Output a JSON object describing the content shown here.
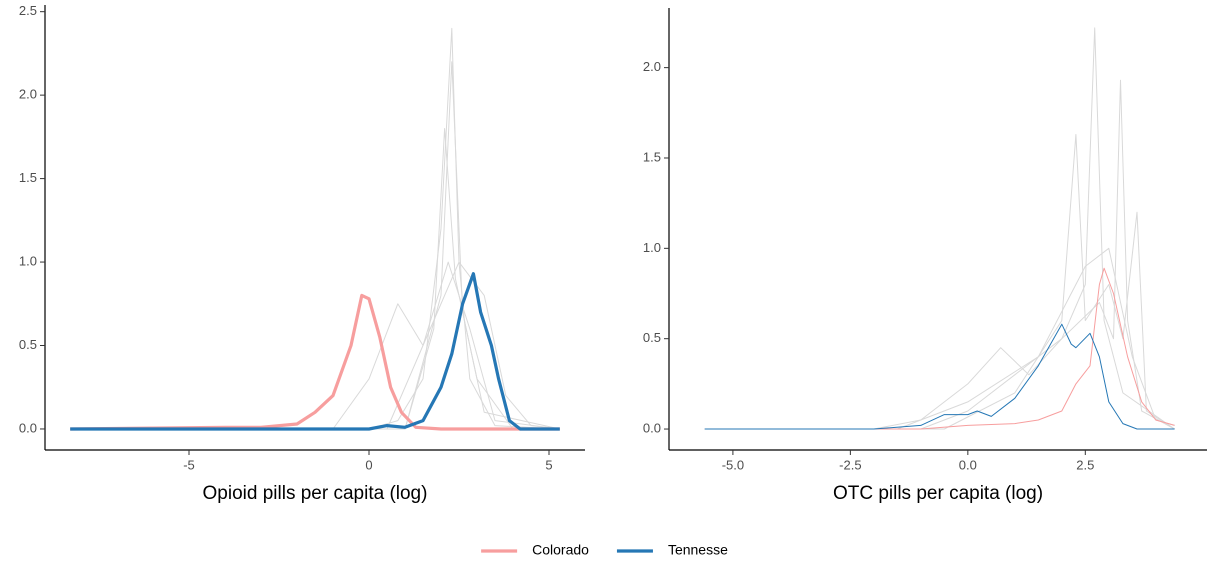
{
  "chart_data": [
    {
      "type": "line",
      "x_label": "Opioid pills per capita (log)",
      "xlim": [
        -9,
        6
      ],
      "ylim": [
        -0.126,
        2.54
      ],
      "xticks": [
        -5,
        0,
        5
      ],
      "yticks": [
        {
          "value": 0,
          "label": "0.0"
        },
        {
          "value": 0.5,
          "label": "0.5"
        },
        {
          "value": 1,
          "label": "1.0"
        },
        {
          "value": 1.5,
          "label": "1.5"
        },
        {
          "value": 2,
          "label": "2.0"
        },
        {
          "value": 2.5,
          "label": "2.5"
        }
      ],
      "grid": false,
      "legend": "bottom",
      "series": [
        {
          "color": "#d9d9d9",
          "x": [
            -8.3,
            0,
            0.8,
            1.5,
            2,
            2.3,
            2.5,
            2.8,
            3.5,
            5.3
          ],
          "values": [
            0,
            0,
            0.05,
            0.3,
            1.2,
            2.4,
            1.0,
            0.3,
            0.02,
            0
          ]
        },
        {
          "color": "#d9d9d9",
          "x": [
            -8.3,
            -1,
            0,
            0.8,
            1.5,
            2.2,
            2.8,
            3.5,
            5.3
          ],
          "values": [
            0,
            0,
            0.3,
            0.75,
            0.5,
            1.0,
            0.6,
            0.05,
            0
          ]
        },
        {
          "color": "#d9d9d9",
          "x": [
            -8.3,
            1,
            1.8,
            2.1,
            2.4,
            3,
            4,
            5.3
          ],
          "values": [
            0,
            0,
            0.6,
            1.8,
            0.9,
            0.3,
            0,
            0
          ]
        },
        {
          "color": "#d9d9d9",
          "x": [
            -8.3,
            0.5,
            1.5,
            2.5,
            3.2,
            3.8,
            4.5,
            5.3
          ],
          "values": [
            0,
            0,
            0.5,
            1.0,
            0.8,
            0.2,
            0.02,
            0
          ]
        },
        {
          "color": "#d9d9d9",
          "x": [
            -8.3,
            1,
            2,
            2.3,
            2.6,
            3.2,
            5.3
          ],
          "values": [
            0,
            0,
            0.8,
            2.2,
            0.7,
            0.1,
            0
          ]
        },
        {
          "name": "Colorado",
          "color": "#f79e9e",
          "x": [
            -8.3,
            -4,
            -3,
            -2,
            -1.5,
            -1,
            -0.5,
            -0.2,
            0,
            0.3,
            0.6,
            0.9,
            1.3,
            2,
            5.3
          ],
          "values": [
            0,
            0.01,
            0.01,
            0.03,
            0.1,
            0.2,
            0.5,
            0.8,
            0.78,
            0.55,
            0.25,
            0.1,
            0.01,
            0,
            0
          ]
        },
        {
          "name": "Tennesse",
          "color": "#2577b5",
          "x": [
            -8.3,
            0,
            0.5,
            1,
            1.5,
            2,
            2.3,
            2.6,
            2.9,
            3.1,
            3.4,
            3.6,
            3.9,
            4.2,
            5.3
          ],
          "values": [
            0,
            0,
            0.02,
            0.01,
            0.05,
            0.25,
            0.45,
            0.75,
            0.93,
            0.7,
            0.5,
            0.3,
            0.05,
            0,
            0
          ]
        }
      ]
    },
    {
      "type": "line",
      "x_label": "OTC pills per capita (log)",
      "xlim": [
        -6.36,
        5.09
      ],
      "ylim": [
        -0.116,
        2.33
      ],
      "xticks": [
        {
          "value": -5,
          "label": "-5.0"
        },
        -2.5,
        {
          "value": 0,
          "label": "0.0"
        },
        2.5
      ],
      "yticks": [
        {
          "value": 0,
          "label": "0.0"
        },
        {
          "value": 0.5,
          "label": "0.5"
        },
        {
          "value": 1,
          "label": "1.0"
        },
        {
          "value": 1.5,
          "label": "1.5"
        },
        {
          "value": 2,
          "label": "2.0"
        }
      ],
      "grid": false,
      "series": [
        {
          "color": "#d9d9d9",
          "x": [
            -5.6,
            -2,
            -1,
            0,
            0.7,
            1.3,
            2,
            2.5,
            2.7,
            2.9,
            3.3,
            4.4
          ],
          "values": [
            0,
            0,
            0.05,
            0.25,
            0.45,
            0.3,
            0.5,
            0.8,
            2.22,
            0.6,
            0.2,
            0
          ]
        },
        {
          "color": "#d9d9d9",
          "x": [
            -5.6,
            -1,
            0,
            1,
            2,
            2.8,
            3.1,
            3.25,
            3.4,
            3.7,
            4.4
          ],
          "values": [
            0,
            0,
            0.1,
            0.3,
            0.5,
            0.7,
            0.5,
            1.93,
            0.6,
            0.1,
            0
          ]
        },
        {
          "color": "#d9d9d9",
          "x": [
            -5.6,
            -0.5,
            1,
            2,
            2.3,
            2.5,
            3,
            3.3,
            3.6,
            3.8,
            4.4
          ],
          "values": [
            0,
            0,
            0.2,
            0.6,
            1.63,
            0.6,
            0.8,
            0.5,
            1.2,
            0.1,
            0
          ]
        },
        {
          "color": "#d9d9d9",
          "x": [
            -5.6,
            -1.5,
            0,
            1.5,
            2.5,
            3,
            3.5,
            4,
            4.4
          ],
          "values": [
            0,
            0,
            0.15,
            0.4,
            0.9,
            1.0,
            0.4,
            0.05,
            0.02
          ]
        },
        {
          "color": "#f79e9e",
          "x": [
            -5.6,
            -1,
            0,
            1,
            1.5,
            2,
            2.3,
            2.6,
            2.8,
            2.9,
            3.1,
            3.4,
            3.7,
            4,
            4.4
          ],
          "values": [
            0,
            0,
            0.02,
            0.03,
            0.05,
            0.1,
            0.25,
            0.35,
            0.8,
            0.89,
            0.75,
            0.4,
            0.15,
            0.05,
            0.02
          ]
        },
        {
          "color": "#2577b5",
          "x": [
            -5.6,
            -2,
            -1,
            -0.5,
            0,
            0.2,
            0.5,
            1,
            1.5,
            2,
            2.2,
            2.3,
            2.6,
            2.8,
            3,
            3.3,
            3.6,
            4.4
          ],
          "values": [
            0,
            0,
            0.02,
            0.08,
            0.08,
            0.1,
            0.07,
            0.17,
            0.35,
            0.58,
            0.47,
            0.45,
            0.53,
            0.4,
            0.15,
            0.03,
            0,
            0
          ]
        }
      ]
    }
  ]
}
